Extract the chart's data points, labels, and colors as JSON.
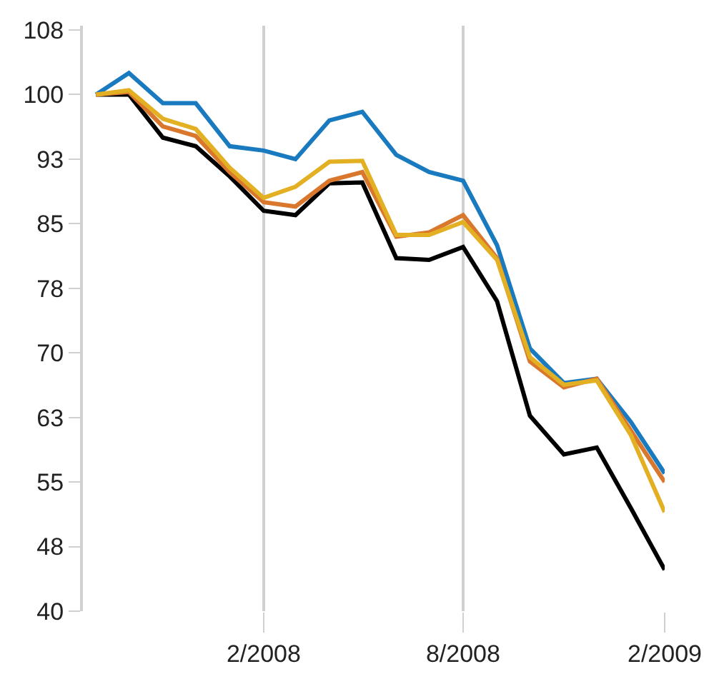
{
  "chart_data": {
    "type": "line",
    "x": [
      "2007-09",
      "2007-10",
      "2007-11",
      "2007-12",
      "2008-01",
      "2008-02",
      "2008-03",
      "2008-04",
      "2008-05",
      "2008-06",
      "2008-07",
      "2008-08",
      "2008-09",
      "2008-10",
      "2008-11",
      "2008-12",
      "2009-01",
      "2009-02"
    ],
    "series": [
      {
        "color": "#1a7abf",
        "values": [
          100,
          102.5,
          99,
          99,
          94,
          93.5,
          92.5,
          97,
          98,
          93,
          91,
          90,
          82.5,
          70.5,
          66.5,
          67,
          62,
          56
        ]
      },
      {
        "color": "#000000",
        "values": [
          100,
          100,
          95,
          94,
          90.5,
          86.5,
          86,
          89.7,
          89.8,
          81,
          80.8,
          82.3,
          76,
          62.7,
          58.2,
          59,
          52,
          44.8
        ]
      },
      {
        "color": "#d9782d",
        "values": [
          100,
          100.3,
          96.3,
          95.2,
          91,
          87.5,
          87,
          90,
          91,
          83.5,
          84,
          86,
          81,
          69,
          66,
          67,
          61,
          55
        ]
      },
      {
        "color": "#e3b023",
        "values": [
          100,
          100.5,
          97.2,
          96,
          91.5,
          88,
          89.3,
          92.2,
          92.3,
          83.7,
          83.7,
          85.2,
          80.8,
          69.5,
          66.3,
          66.8,
          60.5,
          51.5
        ]
      }
    ],
    "xlim": [
      "2007-08-20",
      "2009-02-01"
    ],
    "xticks": [
      {
        "value": "2008-02",
        "label": "2/2008"
      },
      {
        "value": "2008-08",
        "label": "8/2008"
      },
      {
        "value": "2009-02",
        "label": "2/2009"
      }
    ],
    "ylim": [
      40,
      108
    ],
    "yticks": [
      40,
      {
        "value": 47.5,
        "label": "48"
      },
      55,
      {
        "value": 62.5,
        "label": "63"
      },
      70,
      {
        "value": 77.5,
        "label": "78"
      },
      85,
      {
        "value": 92.5,
        "label": "93"
      },
      100,
      {
        "value": 107.5,
        "label": "108"
      }
    ],
    "grid": "x",
    "marker": "none",
    "line_style": "solid"
  }
}
